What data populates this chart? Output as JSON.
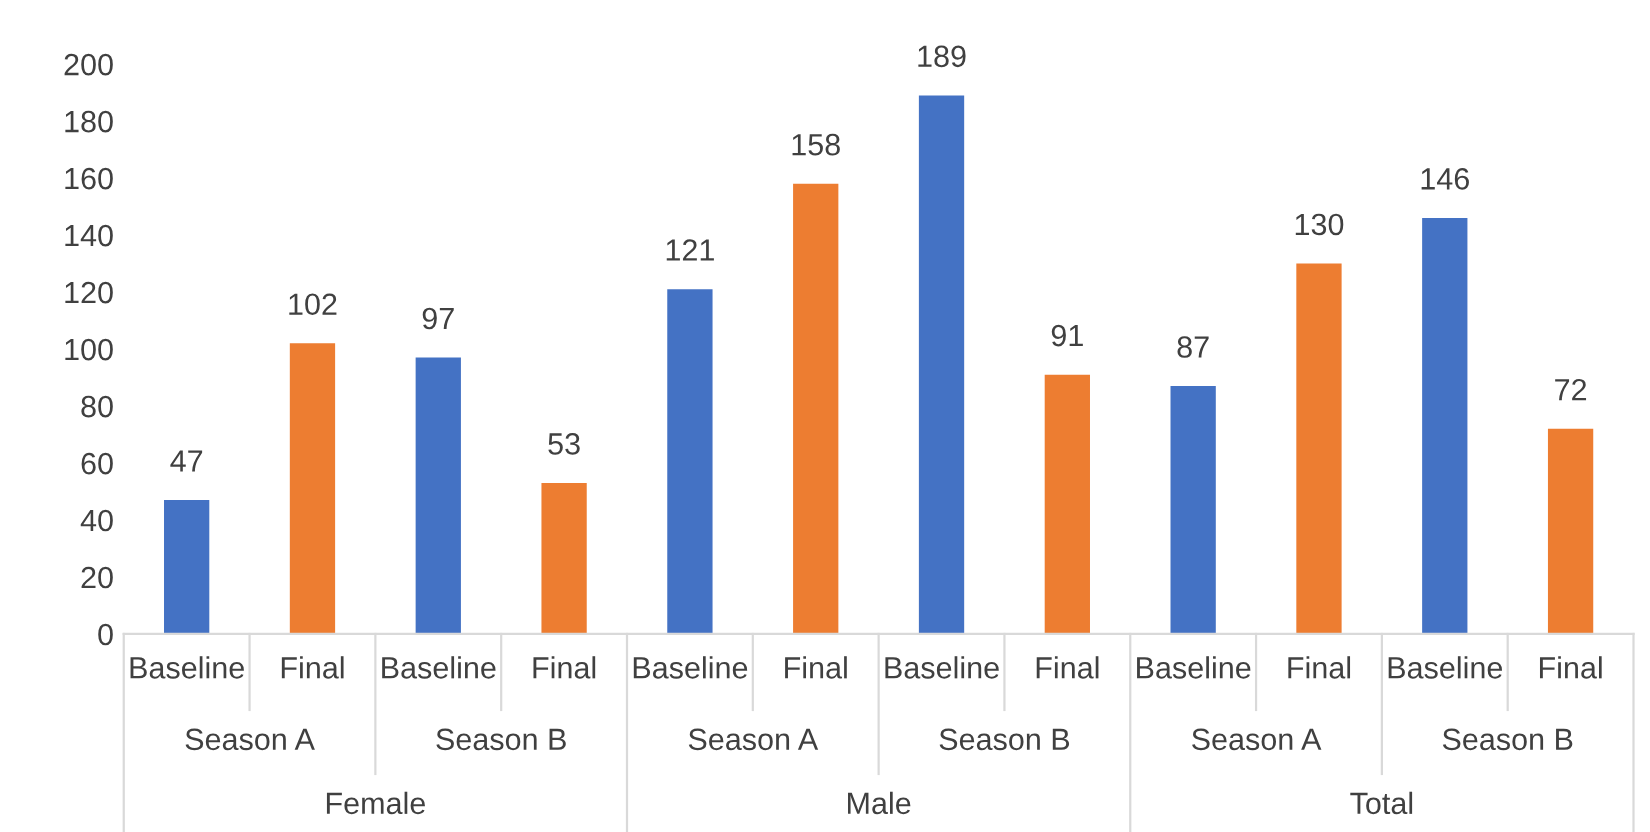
{
  "chart_data": {
    "type": "bar",
    "categories": [
      "Baseline",
      "Final",
      "Baseline",
      "Final",
      "Baseline",
      "Final",
      "Baseline",
      "Final",
      "Baseline",
      "Final",
      "Baseline",
      "Final"
    ],
    "values": [
      47,
      102,
      97,
      53,
      121,
      158,
      189,
      91,
      87,
      130,
      146,
      72
    ],
    "colors": [
      "#4472c4",
      "#ed7d31",
      "#4472c4",
      "#ed7d31",
      "#4472c4",
      "#ed7d31",
      "#4472c4",
      "#ed7d31",
      "#4472c4",
      "#ed7d31",
      "#4472c4",
      "#ed7d31"
    ],
    "annotations": [
      "Season A",
      "Season B",
      "Season A",
      "Season B",
      "Season A",
      "Season B",
      "Female",
      "Male",
      "Total"
    ],
    "ylim": [
      0,
      200
    ],
    "yticks": [
      0,
      20,
      40,
      60,
      80,
      100,
      120,
      140,
      160,
      180,
      200
    ],
    "data_labels": true,
    "grid": false,
    "legend": false
  }
}
